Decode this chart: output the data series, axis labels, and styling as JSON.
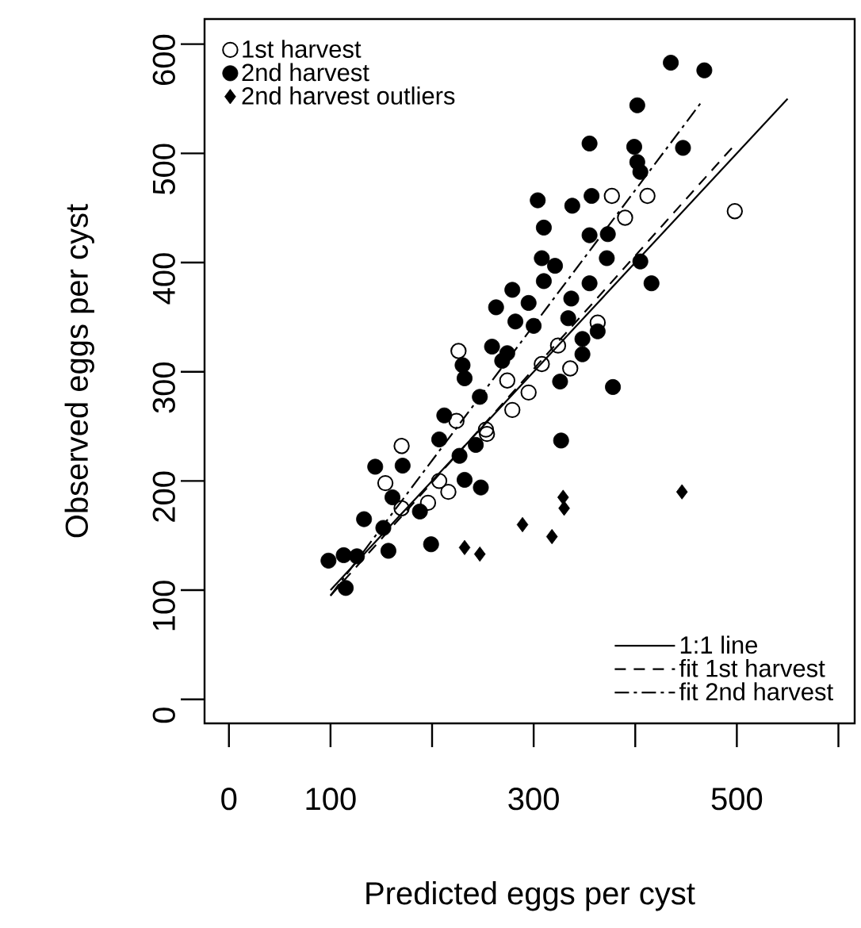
{
  "chart_data": {
    "type": "scatter",
    "xlabel": "Predicted eggs per cyst",
    "ylabel": "Observed eggs per cyst",
    "xlim": [
      -24,
      616
    ],
    "ylim": [
      -22,
      623
    ],
    "xticks": [
      0,
      100,
      {
        "value": 200,
        "label": null
      },
      300,
      {
        "value": 400,
        "label": null
      },
      500,
      {
        "value": 600,
        "label": null
      }
    ],
    "yticks": [
      0,
      100,
      200,
      300,
      400,
      500,
      600
    ],
    "legend": "top left",
    "series": [
      {
        "name": "1st harvest",
        "marker": "open circle",
        "color": "#000000",
        "x": [
          377,
          412,
          390,
          363,
          336,
          308,
          279,
          254,
          295,
          324,
          226,
          170,
          154,
          216,
          196,
          224,
          253,
          274,
          207,
          170,
          498
        ],
        "values": [
          461,
          461,
          441,
          345,
          303,
          307,
          265,
          243,
          281,
          324,
          319,
          232,
          198,
          190,
          180,
          255,
          247,
          292,
          200,
          175,
          447
        ]
      },
      {
        "name": "2nd harvest",
        "marker": "circle",
        "color": "#000000",
        "x": [
          98,
          113,
          115,
          126,
          133,
          152,
          157,
          144,
          161,
          171,
          188,
          199,
          207,
          212,
          227,
          232,
          248,
          230,
          232,
          247,
          259,
          263,
          279,
          269,
          435,
          468,
          402,
          355,
          399,
          447,
          402,
          405,
          304,
          338,
          357,
          310,
          355,
          373,
          308,
          321,
          372,
          405,
          416,
          355,
          295,
          310,
          337,
          334,
          282,
          300,
          363,
          274,
          348,
          348,
          326,
          378,
          327,
          243
        ],
        "values": [
          127,
          132,
          102,
          131,
          165,
          157,
          136,
          213,
          185,
          214,
          172,
          142,
          238,
          260,
          223,
          201,
          194,
          306,
          294,
          277,
          323,
          359,
          375,
          310,
          583,
          576,
          544,
          509,
          506,
          505,
          492,
          483,
          457,
          452,
          461,
          432,
          425,
          426,
          404,
          397,
          404,
          401,
          381,
          381,
          363,
          383,
          367,
          349,
          346,
          342,
          337,
          317,
          330,
          316,
          291,
          286,
          237,
          233
        ]
      },
      {
        "name": "2nd harvest outliers",
        "marker": "diamond",
        "color": "#000000",
        "x": [
          446,
          329,
          330,
          289,
          318,
          232,
          247
        ],
        "values": [
          190,
          185,
          175,
          160,
          149,
          139,
          133
        ]
      },
      {
        "name": "1:1 line",
        "type": "line",
        "line_style": "solid",
        "color": "#000000",
        "x": [
          100,
          550
        ],
        "values": [
          100,
          550
        ]
      },
      {
        "name": "fit 1st harvest",
        "type": "line",
        "line_style": "dashed",
        "color": "#000000",
        "x": [
          100,
          500
        ],
        "values": [
          95,
          510
        ]
      },
      {
        "name": "fit 2nd harvest",
        "type": "line",
        "line_style": "dashdot",
        "color": "#000000",
        "x": [
          100,
          466
        ],
        "values": [
          95,
          548
        ]
      }
    ]
  }
}
